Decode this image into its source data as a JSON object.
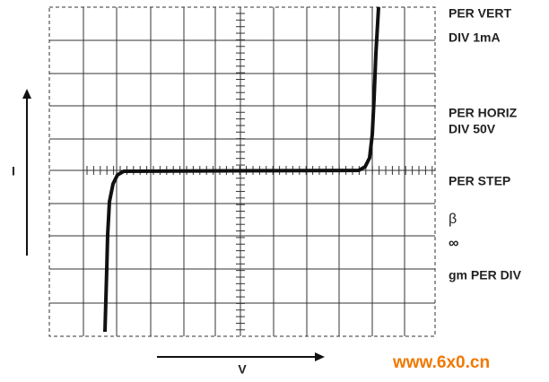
{
  "axes": {
    "y_label": "I",
    "x_label": "V"
  },
  "panel": {
    "per_vert": "PER VERT",
    "div_vert": "DIV 1mA",
    "per_horiz": "PER HORIZ",
    "div_horiz": "DIV 50V",
    "per_step": "PER STEP",
    "beta": "β",
    "infinity": "∞",
    "gm": "gm PER DIV"
  },
  "watermark": "www.6x0.cn"
}
